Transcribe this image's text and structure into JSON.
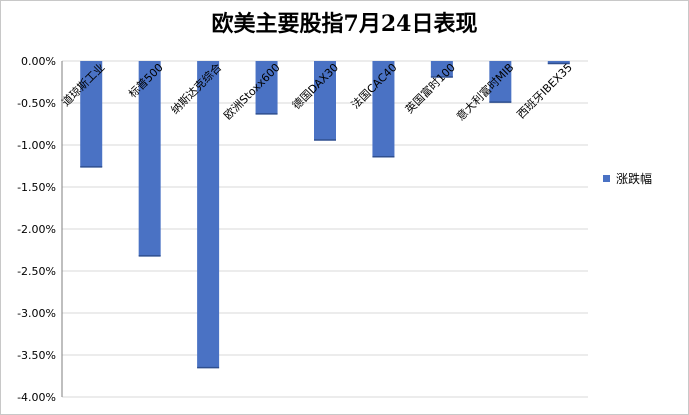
{
  "colors": {
    "bar": "#4a72c4",
    "bar_edge": "#2f4f8f",
    "grid": "#d9d9d9",
    "axis": "#7f7f7f"
  },
  "chart_data": {
    "type": "bar",
    "title": "欧美主要股指7月24日表现",
    "categories": [
      "道琼斯工业",
      "标普500",
      "纳斯达克综合",
      "欧洲Stoxx600",
      "德国DAX30",
      "法国CAC40",
      "英国富时100",
      "意大利富时MIB",
      "西班牙IBEX35"
    ],
    "series": [
      {
        "name": "涨跌幅",
        "values": [
          -1.26,
          -2.32,
          -3.65,
          -0.63,
          -0.94,
          -1.14,
          -0.19,
          -0.49,
          -0.03
        ]
      }
    ],
    "ylim": [
      -4.0,
      0.0
    ],
    "yticks": [
      0.0,
      -0.5,
      -1.0,
      -1.5,
      -2.0,
      -2.5,
      -3.0,
      -3.5,
      -4.0
    ],
    "ytick_labels": [
      "0.00%",
      "-0.50%",
      "-1.00%",
      "-1.50%",
      "-2.00%",
      "-2.50%",
      "-3.00%",
      "-3.50%",
      "-4.00%"
    ],
    "grid": true,
    "legend_position": "right"
  }
}
